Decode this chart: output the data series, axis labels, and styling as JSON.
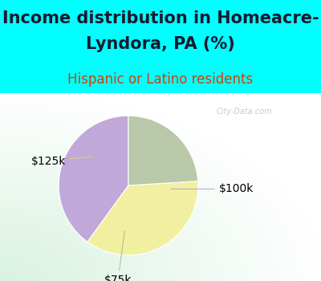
{
  "title_line1": "Income distribution in Homeacre-",
  "title_line2": "Lyndora, PA (%)",
  "subtitle": "Hispanic or Latino residents",
  "bg_cyan": "#00FFFF",
  "bg_chart": "#dff0e8",
  "watermark": "City-Data.com",
  "slices": [
    {
      "label": "$100k",
      "value": 40,
      "color": "#c0a8d8"
    },
    {
      "label": "$125k",
      "value": 36,
      "color": "#f0f0a0"
    },
    {
      "label": "$75k",
      "value": 24,
      "color": "#b8c8a8"
    }
  ],
  "startangle": 90,
  "title_fontsize": 15,
  "subtitle_fontsize": 12,
  "label_fontsize": 10,
  "title_color": "#1a1a2e",
  "subtitle_color": "#cc4400"
}
